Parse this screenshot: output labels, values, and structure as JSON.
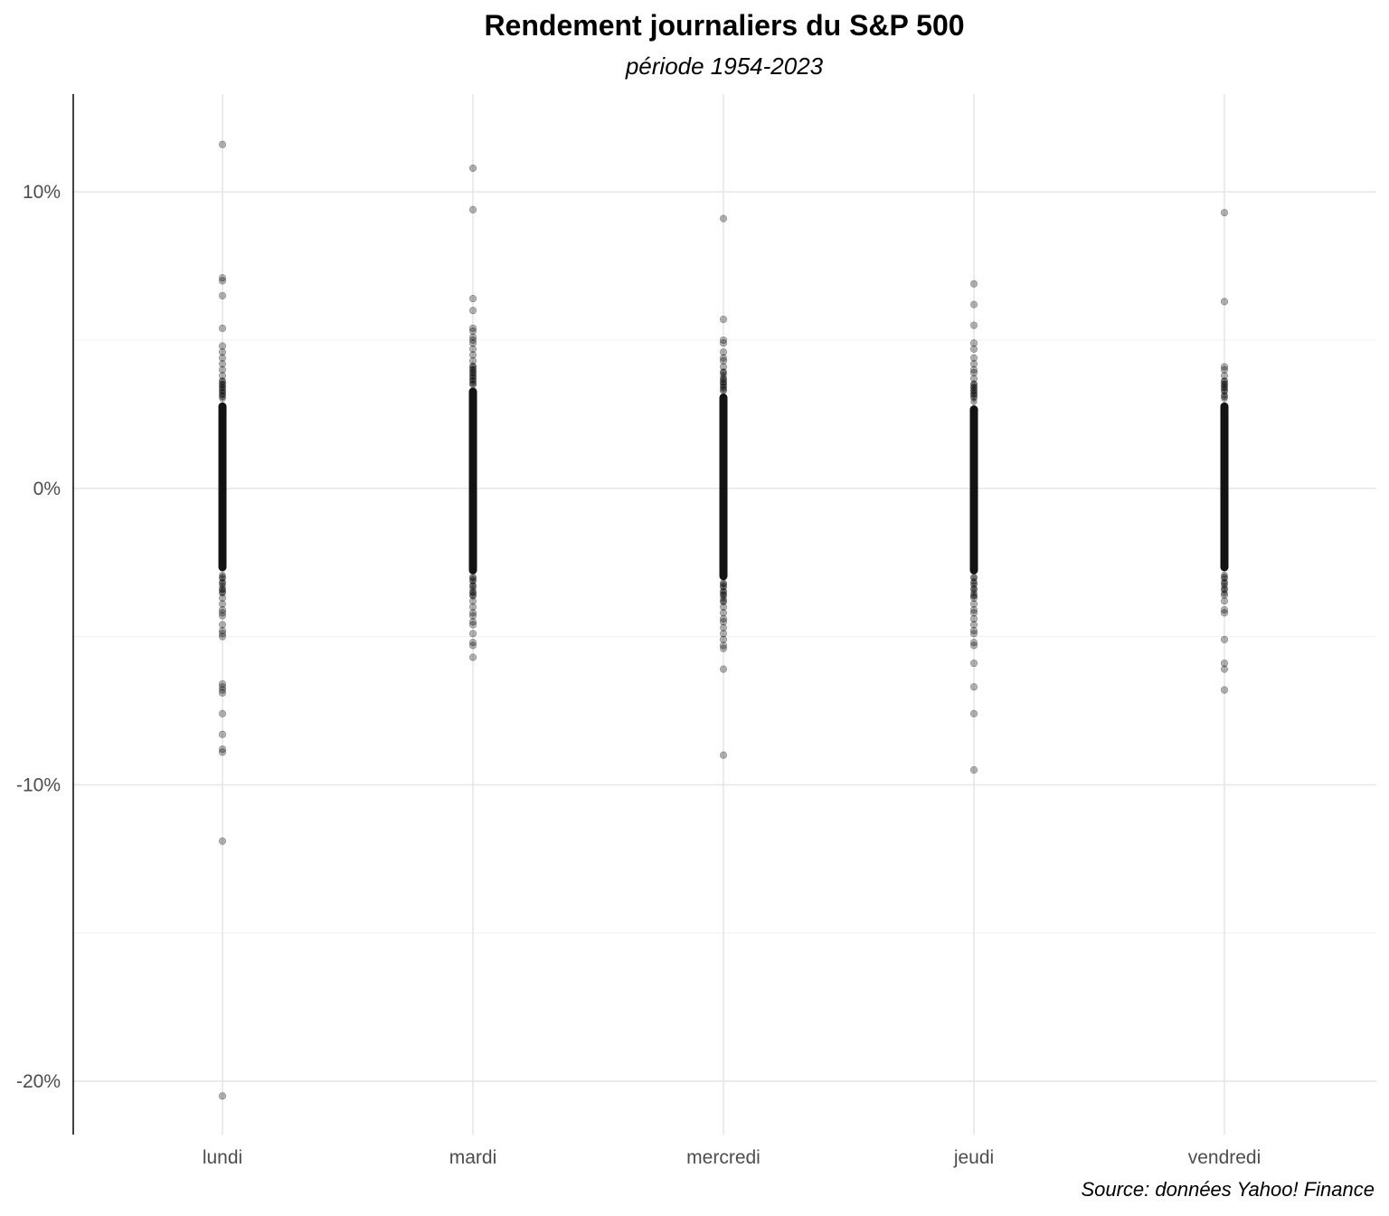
{
  "chart_data": {
    "type": "scatter",
    "title": "Rendement journaliers du S&P 500",
    "subtitle": "période 1954-2023",
    "caption": "Source: données Yahoo! Finance",
    "xlabel": "",
    "ylabel": "",
    "categories": [
      "lundi",
      "mardi",
      "mercredi",
      "jeudi",
      "vendredi"
    ],
    "yticks": [
      {
        "value": 10,
        "label": "10%"
      },
      {
        "value": 0,
        "label": "0%"
      },
      {
        "value": -10,
        "label": "-10%"
      },
      {
        "value": -20,
        "label": "-20%"
      }
    ],
    "ylim": [
      -21.8,
      13.3
    ],
    "grid": true,
    "point_color": "#000000",
    "dense_band": [
      {
        "category": "lundi",
        "min": -2.8,
        "max": 2.9
      },
      {
        "category": "mardi",
        "min": -2.9,
        "max": 3.4
      },
      {
        "category": "mercredi",
        "min": -3.1,
        "max": 3.2
      },
      {
        "category": "jeudi",
        "min": -2.9,
        "max": 2.8
      },
      {
        "category": "vendredi",
        "min": -2.8,
        "max": 2.9
      }
    ],
    "series": [
      {
        "category": "lundi",
        "values": [
          11.6,
          7.1,
          7.0,
          6.5,
          5.4,
          4.8,
          4.6,
          4.4,
          4.2,
          4.0,
          3.8,
          3.6,
          3.5,
          3.4,
          3.3,
          3.2,
          3.1,
          -3.0,
          -3.2,
          -3.4,
          -3.5,
          -3.7,
          -3.9,
          -4.1,
          -4.2,
          -4.3,
          -4.6,
          -4.8,
          -4.9,
          -5.0,
          -6.6,
          -6.7,
          -6.8,
          -6.9,
          -7.6,
          -8.3,
          -8.8,
          -8.9,
          -11.9,
          -20.5
        ]
      },
      {
        "category": "mardi",
        "values": [
          10.8,
          9.4,
          6.4,
          6.0,
          5.4,
          5.3,
          5.1,
          5.0,
          4.9,
          4.7,
          4.5,
          4.3,
          4.1,
          4.0,
          3.9,
          3.8,
          3.7,
          3.6,
          3.5,
          -3.0,
          -3.1,
          -3.3,
          -3.5,
          -3.6,
          -3.8,
          -4.0,
          -4.2,
          -4.3,
          -4.5,
          -4.6,
          -4.9,
          -5.2,
          -5.3,
          -5.7
        ]
      },
      {
        "category": "mercredi",
        "values": [
          9.1,
          5.7,
          5.0,
          4.9,
          4.6,
          4.4,
          4.3,
          4.1,
          3.9,
          3.7,
          3.6,
          3.5,
          3.4,
          3.3,
          -3.2,
          -3.3,
          -3.5,
          -3.6,
          -3.8,
          -4.0,
          -4.2,
          -4.4,
          -4.5,
          -4.7,
          -4.9,
          -5.1,
          -5.3,
          -5.4,
          -6.1,
          -9.0
        ]
      },
      {
        "category": "jeudi",
        "values": [
          6.9,
          6.2,
          5.5,
          4.9,
          4.7,
          4.4,
          4.2,
          4.0,
          3.9,
          3.7,
          3.5,
          3.4,
          3.3,
          3.2,
          3.1,
          -3.0,
          -3.2,
          -3.4,
          -3.6,
          -3.7,
          -3.9,
          -4.1,
          -4.2,
          -4.4,
          -4.6,
          -4.8,
          -4.9,
          -5.2,
          -5.3,
          -5.9,
          -6.7,
          -7.6,
          -9.5
        ]
      },
      {
        "category": "vendredi",
        "values": [
          9.3,
          6.3,
          4.1,
          4.0,
          3.8,
          3.6,
          3.5,
          3.4,
          3.3,
          3.1,
          -3.0,
          -3.2,
          -3.4,
          -3.6,
          -3.8,
          -4.1,
          -4.2,
          -5.1,
          -5.9,
          -6.1,
          -6.8
        ]
      }
    ]
  }
}
